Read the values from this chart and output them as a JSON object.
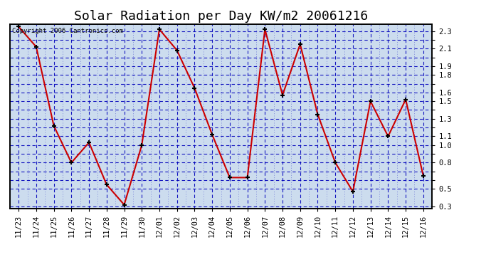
{
  "title": "Solar Radiation per Day KW/m2 20061216",
  "copyright": "Copyright 2006 Cantronics.com",
  "labels": [
    "11/23",
    "11/24",
    "11/25",
    "11/26",
    "11/27",
    "11/28",
    "11/29",
    "11/30",
    "12/01",
    "12/02",
    "12/03",
    "12/04",
    "12/05",
    "12/06",
    "12/07",
    "12/08",
    "12/09",
    "12/10",
    "12/11",
    "12/12",
    "12/13",
    "12/14",
    "12/15",
    "12/16"
  ],
  "values": [
    2.35,
    2.12,
    1.22,
    0.8,
    1.03,
    0.55,
    0.32,
    1.0,
    2.32,
    2.08,
    1.65,
    1.12,
    0.63,
    0.63,
    2.32,
    1.57,
    2.15,
    1.35,
    0.8,
    0.47,
    1.5,
    1.1,
    1.52,
    0.65
  ],
  "line_color": "#CC0000",
  "marker_color": "#000000",
  "bg_color": "#CCDCEE",
  "grid_major_color": "#0000BB",
  "grid_minor_color": "#4444CC",
  "ylim_min": 0.28,
  "ylim_max": 2.38,
  "ytick_positions": [
    0.3,
    0.5,
    0.6,
    0.7,
    0.8,
    0.9,
    1.0,
    1.1,
    1.2,
    1.3,
    1.4,
    1.5,
    1.6,
    1.7,
    1.8,
    1.9,
    2.0,
    2.1,
    2.2,
    2.3
  ],
  "ytick_show": {
    "0.3": true,
    "0.5": true,
    "0.6": false,
    "0.7": false,
    "0.8": true,
    "0.9": false,
    "1.0": true,
    "1.1": true,
    "1.2": false,
    "1.3": true,
    "1.4": false,
    "1.5": true,
    "1.6": true,
    "1.7": false,
    "1.8": true,
    "1.9": true,
    "2.0": false,
    "2.1": true,
    "2.2": false,
    "2.3": true
  },
  "title_fontsize": 13,
  "tick_fontsize": 7.5,
  "copyright_fontsize": 6.5
}
